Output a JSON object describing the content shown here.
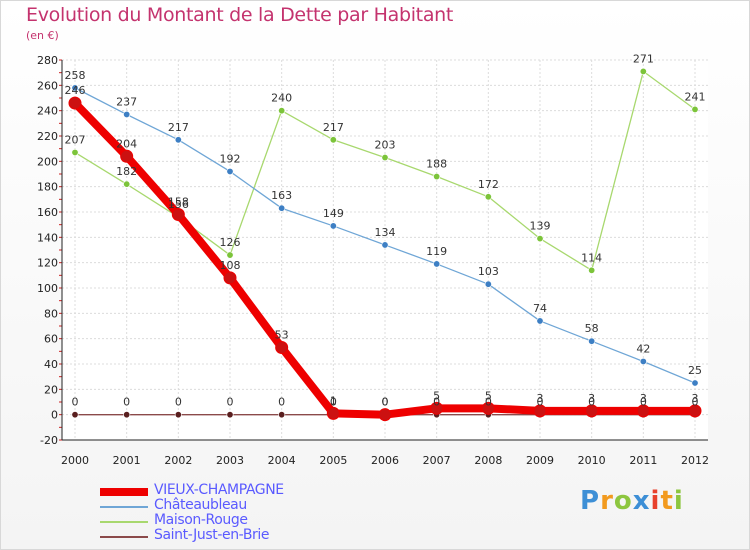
{
  "title": "Evolution du Montant de la Dette par Habitant",
  "subtitle": "(en €)",
  "logo": {
    "text": "Proxiti",
    "letters": [
      {
        "ch": "P",
        "color": "#3d8fd6"
      },
      {
        "ch": "r",
        "color": "#f29a1e"
      },
      {
        "ch": "o",
        "color": "#8dc63f"
      },
      {
        "ch": "x",
        "color": "#3d8fd6"
      },
      {
        "ch": "i",
        "color": "#e8412c"
      },
      {
        "ch": "t",
        "color": "#f29a1e"
      },
      {
        "ch": "i",
        "color": "#8dc63f"
      }
    ]
  },
  "chart_data": {
    "type": "line",
    "title": "Evolution du Montant de la Dette par Habitant",
    "subtitle": "(en €)",
    "xlabel": "",
    "ylabel": "",
    "x": [
      2000,
      2001,
      2002,
      2003,
      2004,
      2005,
      2006,
      2007,
      2008,
      2009,
      2010,
      2011,
      2012
    ],
    "x_tick_labels": [
      "2000",
      "2001",
      "2002",
      "2003",
      "2004",
      "2005",
      "2006",
      "2007",
      "2008",
      "2009",
      "2010",
      "2011",
      "2012"
    ],
    "ylim": [
      -20,
      280
    ],
    "y_ticks": [
      -20,
      0,
      20,
      40,
      60,
      80,
      100,
      120,
      140,
      160,
      180,
      200,
      220,
      240,
      260,
      280
    ],
    "y_tick_labels": [
      "-20",
      "0",
      "20",
      "40",
      "60",
      "80",
      "100",
      "120",
      "140",
      "160",
      "180",
      "200",
      "220",
      "240",
      "260",
      "280"
    ],
    "grid": true,
    "legend_position": "bottom-left",
    "series": [
      {
        "name": "VIEUX-CHAMPAGNE",
        "color": "#ee0000",
        "marker_color": "#cc1111",
        "values": [
          246,
          204,
          158,
          108,
          53,
          1,
          0,
          5,
          5,
          3,
          3,
          3,
          3
        ],
        "labels": [
          "246",
          "204",
          "158",
          "108",
          "53",
          "1",
          "0",
          "5",
          "5",
          "3",
          "3",
          "3",
          "3"
        ]
      },
      {
        "name": "Châteaubleau",
        "color": "#6fa6d6",
        "marker_color": "#3d7fc4",
        "values": [
          258,
          237,
          217,
          192,
          163,
          149,
          134,
          119,
          103,
          74,
          58,
          42,
          25
        ],
        "labels": [
          "258",
          "237",
          "217",
          "192",
          "163",
          "149",
          "134",
          "119",
          "103",
          "74",
          "58",
          "42",
          "25"
        ]
      },
      {
        "name": "Maison-Rouge",
        "color": "#a8d86e",
        "marker_color": "#7cc43a",
        "values": [
          207,
          182,
          156,
          126,
          240,
          217,
          203,
          188,
          172,
          139,
          114,
          271,
          241
        ],
        "labels": [
          "207",
          "182",
          "156",
          "126",
          "240",
          "217",
          "203",
          "188",
          "172",
          "139",
          "114",
          "271",
          "241"
        ]
      },
      {
        "name": "Saint-Just-en-Brie",
        "color": "#8b4a4a",
        "marker_color": "#5a1f1f",
        "values": [
          0,
          0,
          0,
          0,
          0,
          0,
          0,
          0,
          0,
          0,
          0,
          0,
          0
        ],
        "labels": [
          "0",
          "0",
          "0",
          "0",
          "0",
          "0",
          "0",
          "0",
          "0",
          "0",
          "0",
          "0",
          "0"
        ]
      }
    ]
  }
}
